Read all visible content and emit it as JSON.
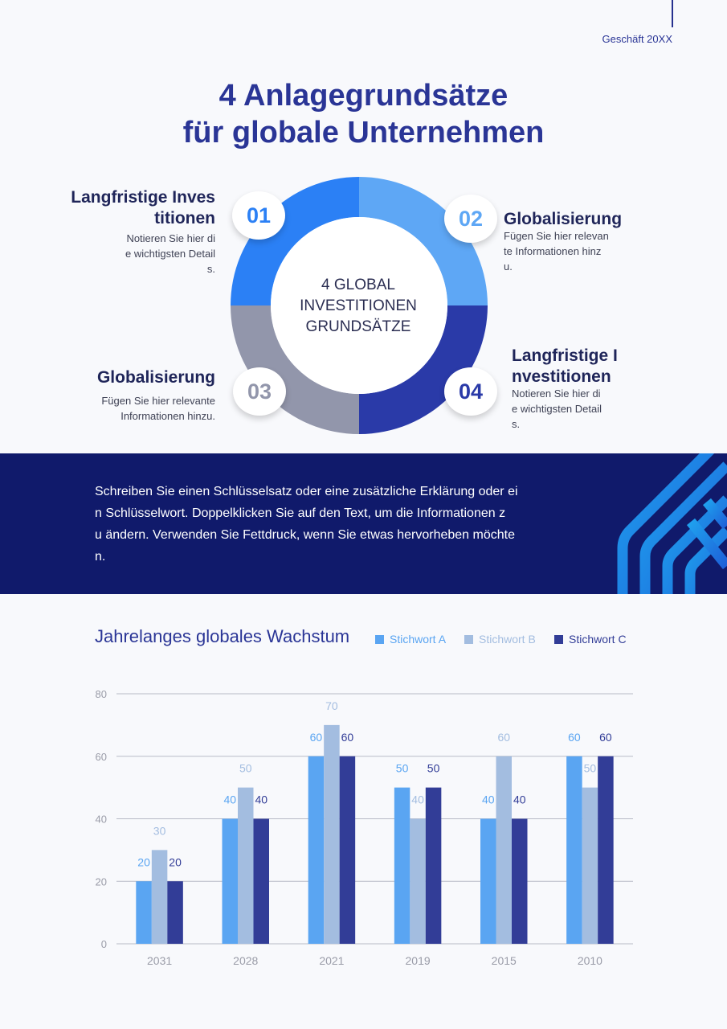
{
  "header": {
    "label": "Geschäft 20XX"
  },
  "title": {
    "line1": "4 Anlagegrundsätze",
    "line2": "für globale Unternehmen"
  },
  "center": {
    "line1": "4 GLOBAL",
    "line2": "INVESTITIONEN",
    "line3": "GRUNDSÄTZE"
  },
  "colors": {
    "seg1": "#2b80f5",
    "seg2": "#5ea7f5",
    "seg3": "#9296ab",
    "seg4": "#2a3aa8"
  },
  "principles": [
    {
      "number": "01",
      "title_lines": [
        "Langfristige Inves",
        "titionen"
      ],
      "text_lines": [
        "Notieren Sie hier di",
        "e wichtigsten Detail",
        "s."
      ]
    },
    {
      "number": "02",
      "title_lines": [
        "Globalisierung"
      ],
      "text_lines": [
        "Fügen Sie hier relevan",
        "te Informationen hinz",
        "u."
      ]
    },
    {
      "number": "03",
      "title_lines": [
        "Globalisierung"
      ],
      "text_lines": [
        "Fügen Sie hier relevante",
        "Informationen hinzu."
      ]
    },
    {
      "number": "04",
      "title_lines": [
        "Langfristige I",
        "nvestitionen"
      ],
      "text_lines": [
        "Notieren Sie hier di",
        "e wichtigsten Detail",
        "s."
      ]
    }
  ],
  "band": {
    "lines": [
      "Schreiben Sie einen Schlüsselsatz oder eine zusätzliche Erklärung oder ei",
      "n Schlüsselwort. Doppelklicken Sie auf den Text, um die Informationen z",
      "u ändern. Verwenden Sie Fettdruck, wenn Sie etwas hervorheben möchte",
      "n."
    ]
  },
  "chart_data": {
    "type": "bar",
    "title": "Jahrelanges globales Wachstum",
    "categories": [
      "2031",
      "2028",
      "2021",
      "2019",
      "2015",
      "2010"
    ],
    "series": [
      {
        "name": "Stichwort A",
        "values": [
          20,
          40,
          60,
          50,
          40,
          60
        ],
        "color": "#5aa5f2"
      },
      {
        "name": "Stichwort B",
        "values": [
          30,
          50,
          70,
          40,
          60,
          50
        ],
        "color": "#a3bde0"
      },
      {
        "name": "Stichwort C",
        "values": [
          20,
          40,
          60,
          50,
          40,
          60
        ],
        "color": "#323d97"
      }
    ],
    "ylim": [
      0,
      80
    ],
    "yticks": [
      0,
      20,
      40,
      60,
      80
    ],
    "grid": true,
    "legend": "top-right"
  }
}
